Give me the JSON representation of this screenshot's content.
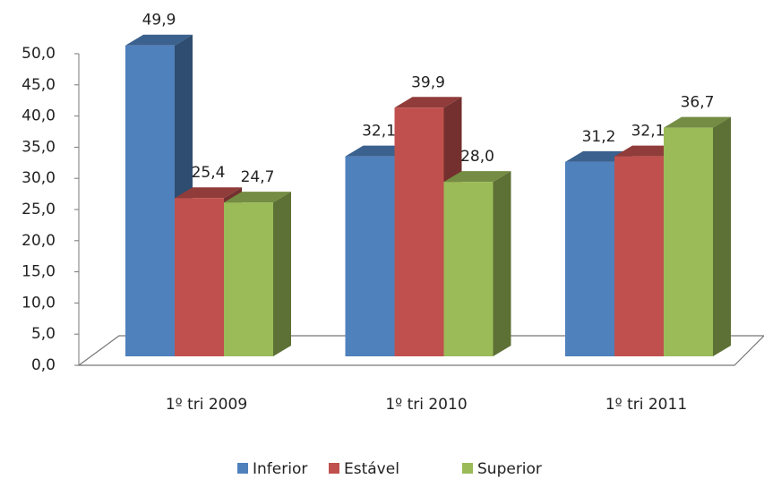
{
  "chart_data": {
    "type": "bar3d",
    "categories": [
      "1º tri 2009",
      "1º tri 2010",
      "1º tri 2011"
    ],
    "series": [
      {
        "name": "Inferior",
        "color": "#4f81bd",
        "values": [
          49.9,
          32.1,
          31.2
        ],
        "value_labels": [
          "49,9",
          "32,1",
          "31,2"
        ]
      },
      {
        "name": "Estável",
        "color": "#c0504d",
        "values": [
          25.4,
          39.9,
          32.1
        ],
        "value_labels": [
          "25,4",
          "39,9",
          "32,1"
        ]
      },
      {
        "name": "Superior",
        "color": "#9bbb59",
        "values": [
          24.7,
          28.0,
          36.7
        ],
        "value_labels": [
          "24,7",
          "28,0",
          "36,7"
        ]
      }
    ],
    "ylim": [
      0,
      50
    ],
    "yticks": [
      {
        "value": 0,
        "label": "0,0"
      },
      {
        "value": 5,
        "label": "5,0"
      },
      {
        "value": 10,
        "label": "10,0"
      },
      {
        "value": 15,
        "label": "15,0"
      },
      {
        "value": 20,
        "label": "20,0"
      },
      {
        "value": 25,
        "label": "25,0"
      },
      {
        "value": 30,
        "label": "30,0"
      },
      {
        "value": 35,
        "label": "35,0"
      },
      {
        "value": 40,
        "label": "40,0"
      },
      {
        "value": 45,
        "label": "45,0"
      },
      {
        "value": 50,
        "label": "50,0"
      }
    ],
    "legend": "bottom"
  }
}
